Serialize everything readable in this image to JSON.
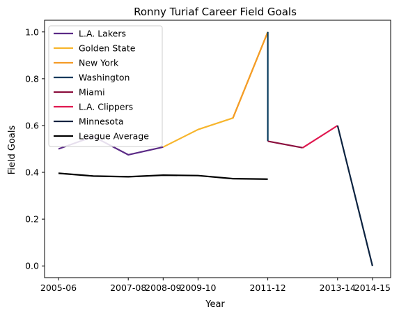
{
  "chart_data": {
    "type": "line",
    "title": "Ronny Turiaf Career Field Goals",
    "xlabel": "Year",
    "ylabel": "Field Goals",
    "categories": [
      "2005-06",
      "2006-07",
      "2007-08",
      "2008-09",
      "2009-10",
      "2010-11",
      "2011-12",
      "2011-12",
      "2012-13",
      "2013-14",
      "2014-15"
    ],
    "x_tick_labels": [
      "2005-06",
      "2007-08",
      "2008-09",
      "2009-10",
      "2011-12",
      "2013-14",
      "2014-15"
    ],
    "ylim": [
      -0.05,
      1.05
    ],
    "y_ticks": [
      "0.0",
      "0.2",
      "0.4",
      "0.6",
      "0.8",
      "1.0"
    ],
    "grid": false,
    "legend_position": "upper-left",
    "series": [
      {
        "name": "L.A. Lakers",
        "color": "#5b2a86",
        "points": [
          [
            "2005-06",
            0.5
          ],
          [
            "2006-07",
            0.553
          ],
          [
            "2007-08",
            0.475
          ],
          [
            "2008-09",
            0.508
          ]
        ]
      },
      {
        "name": "Golden State",
        "color": "#f7b52c",
        "points": [
          [
            "2008-09",
            0.508
          ],
          [
            "2009-10",
            0.583
          ],
          [
            "2010-11",
            0.632
          ],
          [
            "2011-12",
            1.0
          ]
        ]
      },
      {
        "name": "New York",
        "color": "#f49c27",
        "points": [
          [
            "2010-11",
            0.632
          ],
          [
            "2011-12",
            1.0
          ]
        ]
      },
      {
        "name": "Washington",
        "color": "#063a5c",
        "points": [
          [
            "2011-12",
            1.0
          ],
          [
            "2011-12",
            0.533
          ]
        ]
      },
      {
        "name": "Miami",
        "color": "#8b0f3e",
        "points": [
          [
            "2011-12",
            0.533
          ],
          [
            "2012-13",
            0.505
          ]
        ]
      },
      {
        "name": "L.A. Clippers",
        "color": "#e0174f",
        "points": [
          [
            "2012-13",
            0.505
          ],
          [
            "2013-14",
            0.6
          ]
        ]
      },
      {
        "name": "Minnesota",
        "color": "#0c2340",
        "points": [
          [
            "2013-14",
            0.6
          ],
          [
            "2014-15",
            0.0
          ]
        ]
      },
      {
        "name": "League Average",
        "color": "#000000",
        "points": [
          [
            "2005-06",
            0.396
          ],
          [
            "2006-07",
            0.384
          ],
          [
            "2007-08",
            0.381
          ],
          [
            "2008-09",
            0.388
          ],
          [
            "2009-10",
            0.386
          ],
          [
            "2010-11",
            0.373
          ],
          [
            "2011-12",
            0.371
          ]
        ]
      }
    ]
  }
}
